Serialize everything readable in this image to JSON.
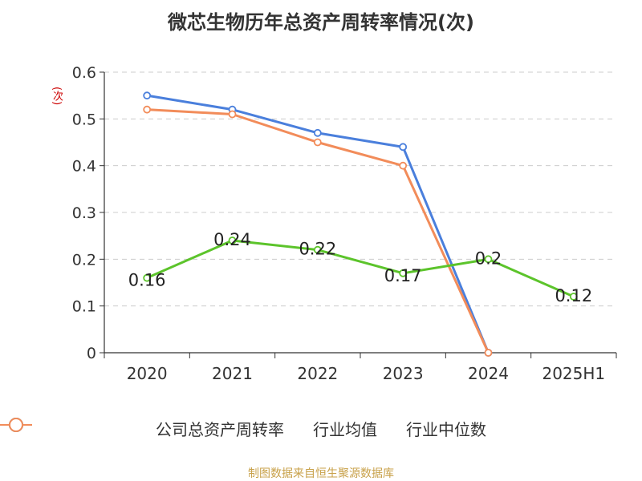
{
  "title": "微芯生物历年总资产周转率情况(次)",
  "source": "制图数据来自恒生聚源数据库",
  "colors": {
    "company": "#5cc42b",
    "avg": "#4a7fdc",
    "median": "#f28c5a",
    "axis": "#333333",
    "grid": "#cccccc"
  },
  "chart_data": {
    "type": "line",
    "title": "微芯生物历年总资产周转率情况(次)",
    "ylabel": "(次)",
    "xlabel": "",
    "categories": [
      "2020",
      "2021",
      "2022",
      "2023",
      "2024",
      "2025H1"
    ],
    "ylim": [
      0,
      0.6
    ],
    "yticks": [
      0,
      0.1,
      0.2,
      0.3,
      0.4,
      0.5,
      0.6
    ],
    "ytick_labels": [
      "0",
      "0.1",
      "0.2",
      "0.3",
      "0.4",
      "0.5",
      "0.6"
    ],
    "grid": true,
    "legend_position": "bottom",
    "series": [
      {
        "name": "公司总资产周转率",
        "color": "#5cc42b",
        "values": [
          0.16,
          0.24,
          0.22,
          0.17,
          0.2,
          0.12
        ],
        "labels": [
          "0.16",
          "0.24",
          "0.22",
          "0.17",
          "0.2",
          "0.12"
        ]
      },
      {
        "name": "行业均值",
        "color": "#4a7fdc",
        "values": [
          0.55,
          0.52,
          0.47,
          0.44,
          0.0,
          null
        ]
      },
      {
        "name": "行业中位数",
        "color": "#f28c5a",
        "values": [
          0.52,
          0.51,
          0.45,
          0.4,
          0.0,
          null
        ]
      }
    ]
  }
}
